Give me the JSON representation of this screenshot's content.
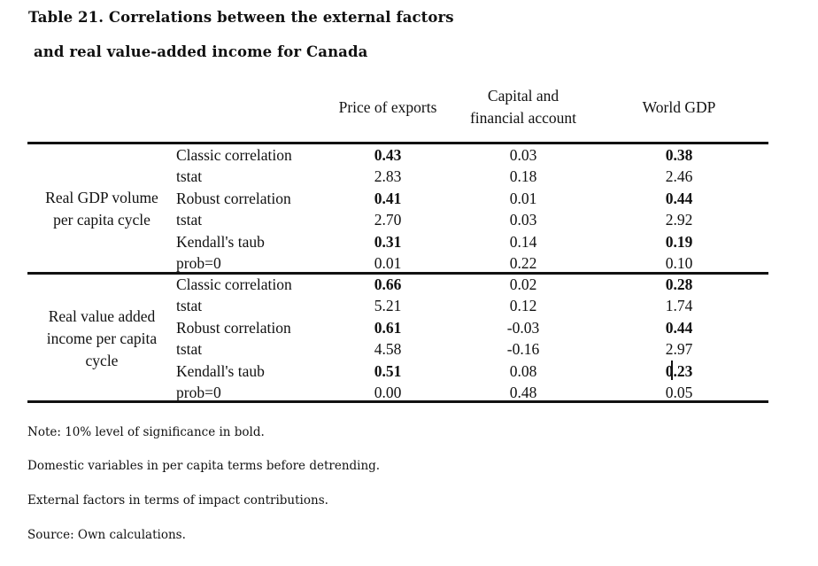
{
  "title_line1": "Table 21. Correlations between the external factors",
  "title_line2": "and real value-added income for Canada",
  "columns": [
    "Price of exports",
    "Capital and financial account",
    "World GDP"
  ],
  "column_lines": {
    "c0": "Price of exports",
    "c1a": "Capital and",
    "c1b": "financial account",
    "c2": "World GDP"
  },
  "groups": [
    {
      "label_lines": [
        "Real GDP volume",
        "per capita cycle"
      ],
      "rows": [
        {
          "label": "Classic correlation",
          "values": [
            "0.43",
            "0.03",
            "0.38"
          ],
          "bold": [
            true,
            false,
            true
          ]
        },
        {
          "label": "tstat",
          "values": [
            "2.83",
            "0.18",
            "2.46"
          ],
          "bold": [
            false,
            false,
            false
          ]
        },
        {
          "label": "Robust correlation",
          "values": [
            "0.41",
            "0.01",
            "0.44"
          ],
          "bold": [
            true,
            false,
            true
          ]
        },
        {
          "label": "tstat",
          "values": [
            "2.70",
            "0.03",
            "2.92"
          ],
          "bold": [
            false,
            false,
            false
          ]
        },
        {
          "label": "Kendall's taub",
          "values": [
            "0.31",
            "0.14",
            "0.19"
          ],
          "bold": [
            true,
            false,
            true
          ]
        },
        {
          "label": "prob=0",
          "values": [
            "0.01",
            "0.22",
            "0.10"
          ],
          "bold": [
            false,
            false,
            false
          ]
        }
      ]
    },
    {
      "label_lines": [
        "Real value added",
        "income per capita",
        "cycle"
      ],
      "rows": [
        {
          "label": "Classic correlation",
          "values": [
            "0.66",
            "0.02",
            "0.28"
          ],
          "bold": [
            true,
            false,
            true
          ]
        },
        {
          "label": "tstat",
          "values": [
            "5.21",
            "0.12",
            "1.74"
          ],
          "bold": [
            false,
            false,
            false
          ]
        },
        {
          "label": "Robust correlation",
          "values": [
            "0.61",
            "-0.03",
            "0.44"
          ],
          "bold": [
            true,
            false,
            true
          ]
        },
        {
          "label": "tstat",
          "values": [
            "4.58",
            "-0.16",
            "2.97"
          ],
          "bold": [
            false,
            false,
            false
          ]
        },
        {
          "label": "Kendall's taub",
          "values": [
            "0.51",
            "0.08",
            "0.23"
          ],
          "bold": [
            true,
            false,
            true
          ]
        },
        {
          "label": "prob=0",
          "values": [
            "0.00",
            "0.48",
            "0.05"
          ],
          "bold": [
            false,
            false,
            false
          ]
        }
      ]
    }
  ],
  "notes": [
    "Note: 10% level of significance in bold.",
    "Domestic variables in per capita terms before detrending.",
    "External factors in terms of impact contributions.",
    "Source: Own calculations."
  ]
}
